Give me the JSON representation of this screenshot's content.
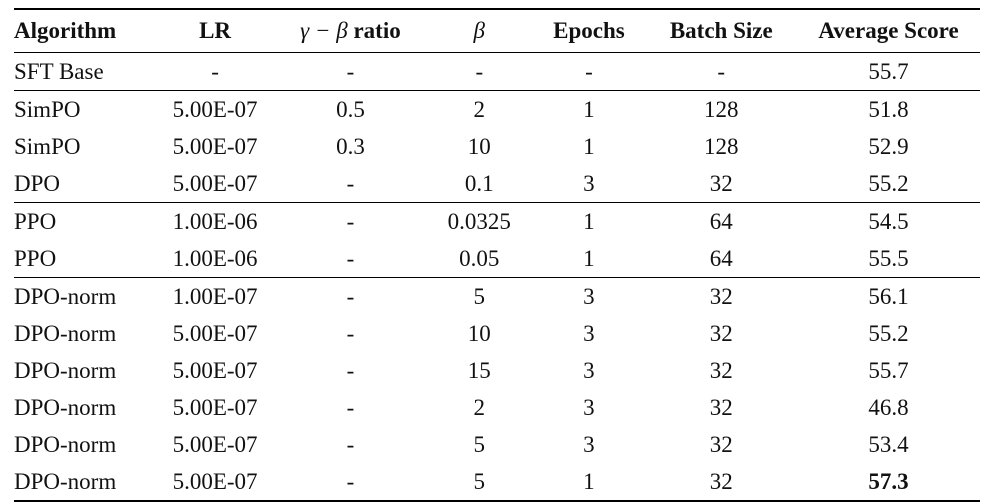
{
  "headers": {
    "algorithm": "Algorithm",
    "lr": "LR",
    "ratio_math": "γ − β",
    "ratio_word": "ratio",
    "beta": "β",
    "epochs": "Epochs",
    "batch_size": "Batch Size",
    "average_score": "Average Score"
  },
  "rows": [
    {
      "algorithm": "SFT Base",
      "lr": "-",
      "ratio": "-",
      "beta": "-",
      "epochs": "-",
      "batch_size": "-",
      "average_score": "55.7"
    },
    {
      "algorithm": "SimPO",
      "lr": "5.00E-07",
      "ratio": "0.5",
      "beta": "2",
      "epochs": "1",
      "batch_size": "128",
      "average_score": "51.8"
    },
    {
      "algorithm": "SimPO",
      "lr": "5.00E-07",
      "ratio": "0.3",
      "beta": "10",
      "epochs": "1",
      "batch_size": "128",
      "average_score": "52.9"
    },
    {
      "algorithm": "DPO",
      "lr": "5.00E-07",
      "ratio": "-",
      "beta": "0.1",
      "epochs": "3",
      "batch_size": "32",
      "average_score": "55.2"
    },
    {
      "algorithm": "PPO",
      "lr": "1.00E-06",
      "ratio": "-",
      "beta": "0.0325",
      "epochs": "1",
      "batch_size": "64",
      "average_score": "54.5"
    },
    {
      "algorithm": "PPO",
      "lr": "1.00E-06",
      "ratio": "-",
      "beta": "0.05",
      "epochs": "1",
      "batch_size": "64",
      "average_score": "55.5"
    },
    {
      "algorithm": "DPO-norm",
      "lr": "1.00E-07",
      "ratio": "-",
      "beta": "5",
      "epochs": "3",
      "batch_size": "32",
      "average_score": "56.1"
    },
    {
      "algorithm": "DPO-norm",
      "lr": "5.00E-07",
      "ratio": "-",
      "beta": "10",
      "epochs": "3",
      "batch_size": "32",
      "average_score": "55.2"
    },
    {
      "algorithm": "DPO-norm",
      "lr": "5.00E-07",
      "ratio": "-",
      "beta": "15",
      "epochs": "3",
      "batch_size": "32",
      "average_score": "55.7"
    },
    {
      "algorithm": "DPO-norm",
      "lr": "5.00E-07",
      "ratio": "-",
      "beta": "2",
      "epochs": "3",
      "batch_size": "32",
      "average_score": "46.8"
    },
    {
      "algorithm": "DPO-norm",
      "lr": "5.00E-07",
      "ratio": "-",
      "beta": "5",
      "epochs": "3",
      "batch_size": "32",
      "average_score": "53.4"
    },
    {
      "algorithm": "DPO-norm",
      "lr": "5.00E-07",
      "ratio": "-",
      "beta": "5",
      "epochs": "1",
      "batch_size": "32",
      "average_score": "57.3"
    }
  ],
  "highlight": {
    "row_index": 11,
    "column": "average_score",
    "style": "bold"
  }
}
